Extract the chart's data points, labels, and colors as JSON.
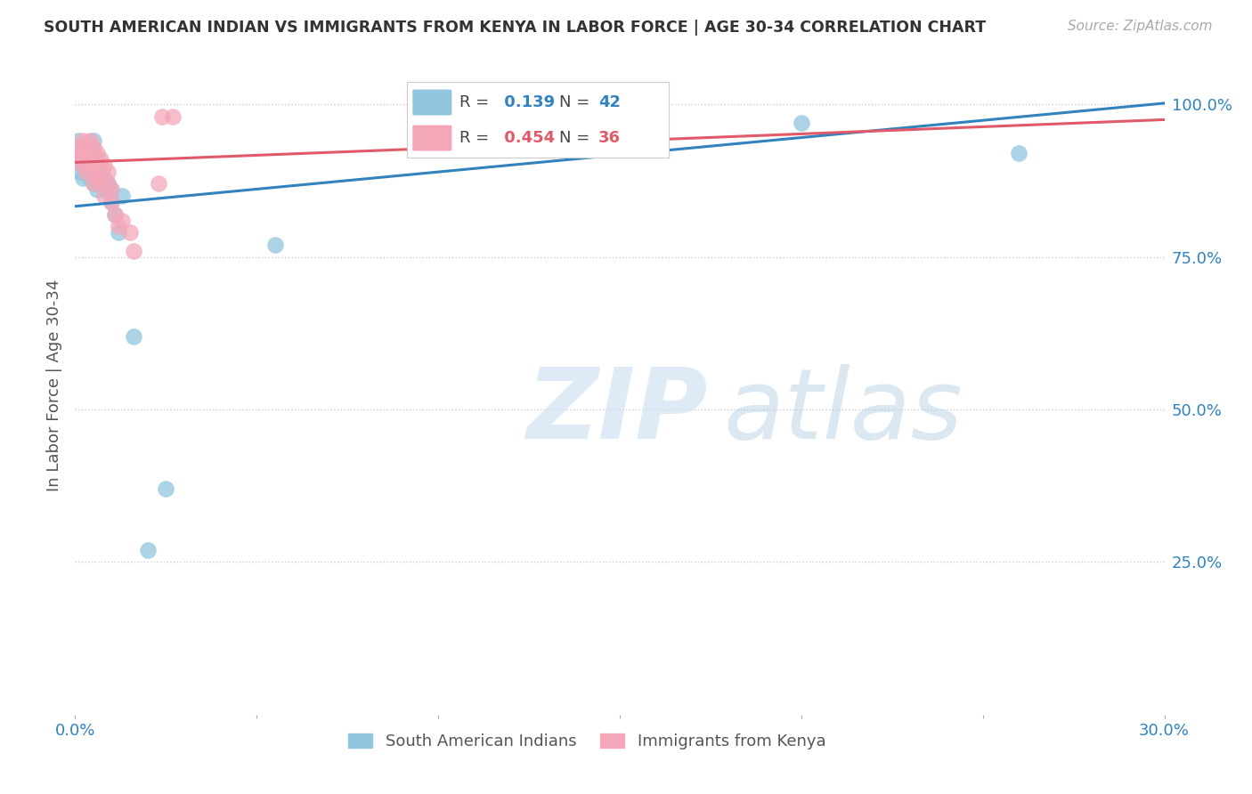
{
  "title": "SOUTH AMERICAN INDIAN VS IMMIGRANTS FROM KENYA IN LABOR FORCE | AGE 30-34 CORRELATION CHART",
  "source": "Source: ZipAtlas.com",
  "ylabel": "In Labor Force | Age 30-34",
  "xlim": [
    0.0,
    0.3
  ],
  "ylim": [
    0.0,
    1.08
  ],
  "yticks": [
    0.25,
    0.5,
    0.75,
    1.0
  ],
  "ytick_labels": [
    "25.0%",
    "50.0%",
    "75.0%",
    "100.0%"
  ],
  "blue_R": 0.139,
  "blue_N": 42,
  "pink_R": 0.454,
  "pink_N": 36,
  "blue_color": "#92c5de",
  "pink_color": "#f4a7b9",
  "blue_line_color": "#3182bd",
  "pink_line_color": "#e05a6a",
  "legend_blue_label": "South American Indians",
  "legend_pink_label": "Immigrants from Kenya",
  "blue_x": [
    0.0005,
    0.001,
    0.001,
    0.001,
    0.0015,
    0.002,
    0.002,
    0.002,
    0.003,
    0.003,
    0.003,
    0.003,
    0.004,
    0.004,
    0.004,
    0.004,
    0.004,
    0.005,
    0.005,
    0.005,
    0.005,
    0.005,
    0.006,
    0.006,
    0.006,
    0.006,
    0.007,
    0.007,
    0.008,
    0.008,
    0.009,
    0.01,
    0.01,
    0.011,
    0.012,
    0.013,
    0.016,
    0.02,
    0.025,
    0.055,
    0.2,
    0.26
  ],
  "blue_y": [
    0.92,
    0.93,
    0.94,
    0.92,
    0.89,
    0.91,
    0.9,
    0.88,
    0.93,
    0.92,
    0.91,
    0.89,
    0.93,
    0.91,
    0.9,
    0.92,
    0.88,
    0.94,
    0.92,
    0.91,
    0.89,
    0.87,
    0.91,
    0.9,
    0.88,
    0.86,
    0.89,
    0.87,
    0.88,
    0.86,
    0.87,
    0.86,
    0.84,
    0.82,
    0.79,
    0.85,
    0.62,
    0.27,
    0.37,
    0.77,
    0.97,
    0.92
  ],
  "pink_x": [
    0.0005,
    0.001,
    0.001,
    0.002,
    0.002,
    0.002,
    0.003,
    0.003,
    0.003,
    0.004,
    0.004,
    0.004,
    0.005,
    0.005,
    0.005,
    0.005,
    0.006,
    0.006,
    0.006,
    0.007,
    0.007,
    0.007,
    0.008,
    0.008,
    0.009,
    0.009,
    0.01,
    0.01,
    0.011,
    0.012,
    0.013,
    0.015,
    0.016,
    0.023,
    0.024,
    0.027
  ],
  "pink_y": [
    0.92,
    0.93,
    0.91,
    0.94,
    0.92,
    0.9,
    0.93,
    0.91,
    0.89,
    0.94,
    0.92,
    0.9,
    0.91,
    0.89,
    0.93,
    0.87,
    0.92,
    0.9,
    0.88,
    0.91,
    0.89,
    0.87,
    0.9,
    0.85,
    0.89,
    0.87,
    0.86,
    0.84,
    0.82,
    0.8,
    0.81,
    0.79,
    0.76,
    0.87,
    0.98,
    0.98
  ]
}
